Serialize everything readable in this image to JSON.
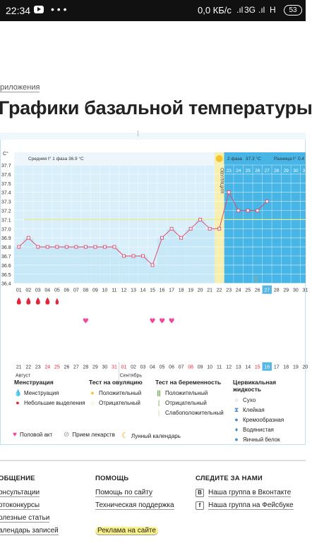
{
  "status_bar": {
    "time": "22:34",
    "dots": "• • •",
    "network": "0,0 КБ/с",
    "signal1": ".ıl",
    "network_type": "3G",
    "signal2": ".ıl",
    "h": "H",
    "battery": "53"
  },
  "breadcrumb": "риложения",
  "page_title": "Графики базальной температуры",
  "chart_data": {
    "type": "line",
    "ylabel": "C°",
    "yticks": [
      "37.7",
      "37.6",
      "37.5",
      "37.4",
      "37.3",
      "37.2",
      "37.1",
      "37.0",
      "36.9",
      "36.8",
      "36.7",
      "36.6",
      "36.5",
      "36.4"
    ],
    "ylim": [
      36.4,
      37.7
    ],
    "cycle_days": [
      "01",
      "02",
      "03",
      "04",
      "05",
      "06",
      "07",
      "08",
      "09",
      "10",
      "11",
      "12",
      "13",
      "14",
      "15",
      "16",
      "17",
      "18",
      "19",
      "20",
      "21",
      "22",
      "23",
      "24",
      "25",
      "26",
      "27",
      "28",
      "29",
      "30",
      "31"
    ],
    "dates": [
      "21",
      "22",
      "23",
      "24",
      "25",
      "26",
      "27",
      "28",
      "29",
      "30",
      "31",
      "01",
      "02",
      "03",
      "04",
      "05",
      "06",
      "07",
      "08",
      "09",
      "10",
      "11",
      "12",
      "13",
      "14",
      "15",
      "16",
      "17",
      "18",
      "19",
      "20"
    ],
    "temperatures": [
      36.8,
      36.9,
      36.8,
      36.8,
      36.8,
      36.8,
      36.8,
      36.8,
      36.8,
      36.8,
      36.8,
      36.7,
      36.7,
      36.7,
      36.6,
      36.9,
      37.0,
      36.9,
      37.0,
      37.1,
      37.0,
      37.0,
      37.4,
      37.2,
      37.2,
      37.2,
      37.3
    ],
    "phase1_label": "Средняя t° 1 фаза",
    "phase1_value": "36.9 °C",
    "phase2_label": "2 фаза",
    "phase2_value": "37.3 °C",
    "diff_label": "Разница t°",
    "diff_value": "0.4",
    "ovulation_label": "ОВУЛЯЦИЯ",
    "ovulation_day": 22,
    "today_day": 27,
    "coverline": 37.1,
    "month1": "Август",
    "month2": "Сентябрь",
    "menstruation_days": [
      1,
      2,
      3,
      4,
      5
    ],
    "intercourse_days": [
      8,
      15,
      16,
      17
    ],
    "moon_day": 26,
    "colors": {
      "grid_bg": "#d9f0fb",
      "phase2_bg": "#47b6e6",
      "line": "#e04a6e",
      "coverline": "#e9ea8a",
      "ovulation": "#f7efb0",
      "today": "#56b6e4",
      "drop": "#e2263a",
      "heart": "#f0469c"
    }
  },
  "legend": {
    "col1_title": "Менструация",
    "col1_items": [
      "Менструация",
      "Небольшие выделения"
    ],
    "col2_title": "Тест на овуляцию",
    "col2_items": [
      "Положительный",
      "Отрицательный"
    ],
    "col3_title": "Тест на беременность",
    "col3_items": [
      "Положительный",
      "Отрицательный",
      "Слабоположительный"
    ],
    "col4_title": "Цервикальная жидкость",
    "col4_items": [
      "Сухо",
      "Клейкая",
      "Кремообразная",
      "Водянистая",
      "Яичный белок"
    ],
    "bottom_items": [
      "Половой акт",
      "Прием лекарств",
      "Лунный календарь"
    ]
  },
  "footer": {
    "col1_title": "ОБЩЕНИЕ",
    "col1_items": [
      "онсультации",
      "отоконкурсы",
      "олезные статьи",
      "алендарь записей"
    ],
    "col2_title": "ПОМОЩЬ",
    "col2_items": [
      "Помощь по сайту",
      "Техническая поддержка",
      "Реклама на сайте"
    ],
    "col3_title": "СЛЕДИТЕ ЗА НАМИ",
    "col3_items": [
      "Наша группа в Вконтакте",
      "Наша группа на Фейсбуке"
    ],
    "col3_icons": [
      "В",
      "f"
    ]
  }
}
